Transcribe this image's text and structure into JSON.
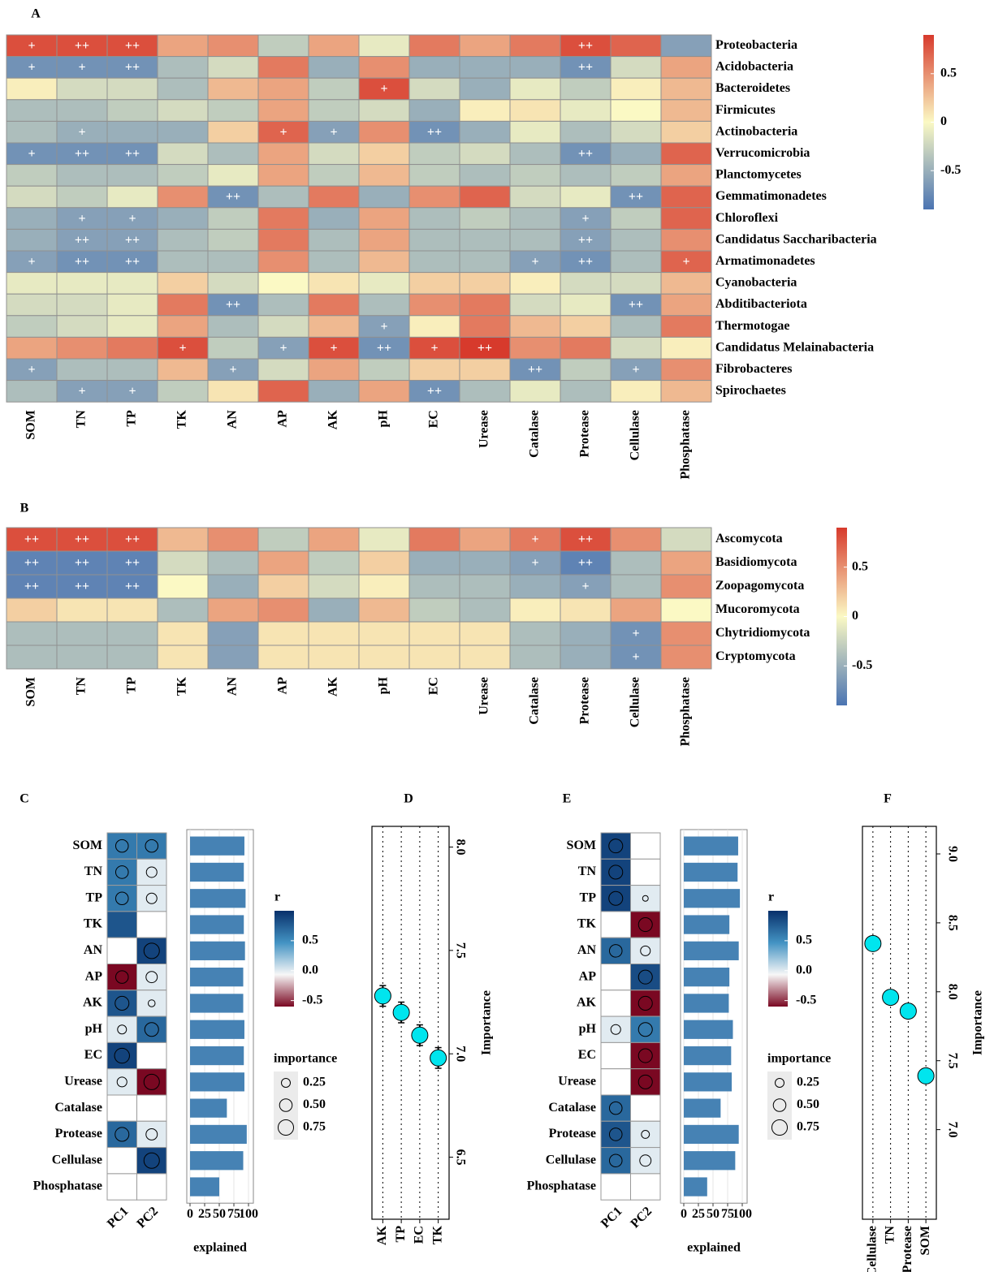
{
  "chart_data": [
    {
      "type": "heatmap",
      "label": "A",
      "rows": [
        "Proteobacteria",
        "Acidobacteria",
        "Bacteroidetes",
        "Firmicutes",
        "Actinobacteria",
        "Verrucomicrobia",
        "Planctomycetes",
        "Gemmatimonadetes",
        "Chloroflexi",
        "Candidatus Saccharibacteria",
        "Armatimonadetes",
        "Cyanobacteria",
        "Abditibacteriota",
        "Thermotogae",
        "Candidatus Melainabacteria",
        "Fibrobacteres",
        "Spirochaetes"
      ],
      "columns": [
        "SOM",
        "TN",
        "TP",
        "TK",
        "AN",
        "AP",
        "AK",
        "pH",
        "EC",
        "Urease",
        "Catalase",
        "Protease",
        "Cellulase",
        "Phosphatase"
      ],
      "values": [
        [
          0.8,
          0.8,
          0.8,
          0.4,
          0.5,
          -0.3,
          0.4,
          -0.1,
          0.6,
          0.4,
          0.6,
          0.8,
          0.7,
          -0.6
        ],
        [
          -0.7,
          -0.7,
          -0.7,
          -0.4,
          -0.2,
          0.6,
          -0.5,
          0.5,
          -0.5,
          -0.5,
          -0.5,
          -0.7,
          -0.2,
          0.4
        ],
        [
          0.05,
          -0.2,
          -0.2,
          -0.4,
          0.3,
          0.4,
          -0.3,
          0.8,
          -0.2,
          -0.5,
          -0.1,
          -0.3,
          0.05,
          0.3
        ],
        [
          -0.4,
          -0.4,
          -0.3,
          -0.2,
          -0.3,
          0.4,
          -0.3,
          -0.2,
          -0.5,
          0.05,
          0.1,
          -0.1,
          0.0,
          0.3
        ],
        [
          -0.4,
          -0.5,
          -0.5,
          -0.5,
          0.2,
          0.7,
          -0.6,
          0.5,
          -0.7,
          -0.5,
          -0.1,
          -0.4,
          -0.2,
          0.2
        ],
        [
          -0.7,
          -0.7,
          -0.7,
          -0.2,
          -0.4,
          0.4,
          -0.2,
          0.2,
          -0.3,
          -0.2,
          -0.4,
          -0.7,
          -0.5,
          0.7
        ],
        [
          -0.3,
          -0.4,
          -0.4,
          -0.3,
          -0.1,
          0.4,
          -0.3,
          0.3,
          -0.3,
          -0.4,
          -0.3,
          -0.4,
          -0.3,
          0.4
        ],
        [
          -0.2,
          -0.3,
          -0.1,
          0.5,
          -0.7,
          -0.4,
          0.6,
          -0.5,
          0.5,
          0.7,
          -0.2,
          -0.1,
          -0.7,
          0.7
        ],
        [
          -0.5,
          -0.6,
          -0.6,
          -0.5,
          -0.3,
          0.6,
          -0.5,
          0.4,
          -0.4,
          -0.3,
          -0.4,
          -0.6,
          -0.3,
          0.7
        ],
        [
          -0.5,
          -0.6,
          -0.6,
          -0.4,
          -0.3,
          0.6,
          -0.4,
          0.4,
          -0.4,
          -0.4,
          -0.4,
          -0.6,
          -0.4,
          0.5
        ],
        [
          -0.6,
          -0.7,
          -0.7,
          -0.4,
          -0.4,
          0.5,
          -0.4,
          0.3,
          -0.4,
          -0.4,
          -0.6,
          -0.7,
          -0.4,
          0.7
        ],
        [
          -0.1,
          -0.1,
          -0.1,
          0.2,
          -0.2,
          0.0,
          0.1,
          -0.1,
          0.2,
          0.2,
          0.05,
          -0.2,
          -0.2,
          0.3
        ],
        [
          -0.2,
          -0.2,
          -0.1,
          0.6,
          -0.7,
          -0.4,
          0.6,
          -0.4,
          0.5,
          0.6,
          -0.2,
          -0.1,
          -0.7,
          0.4
        ],
        [
          -0.3,
          -0.2,
          -0.1,
          0.4,
          -0.4,
          -0.2,
          0.3,
          -0.6,
          0.05,
          0.6,
          0.3,
          0.2,
          -0.4,
          0.6
        ],
        [
          0.4,
          0.5,
          0.6,
          0.8,
          -0.3,
          -0.6,
          0.8,
          -0.7,
          0.8,
          0.9,
          0.5,
          0.6,
          -0.2,
          0.05
        ],
        [
          -0.6,
          -0.4,
          -0.4,
          0.3,
          -0.6,
          -0.2,
          0.4,
          -0.3,
          0.2,
          0.2,
          -0.7,
          -0.3,
          -0.6,
          0.5
        ],
        [
          -0.4,
          -0.6,
          -0.6,
          -0.3,
          0.1,
          0.7,
          -0.5,
          0.4,
          -0.7,
          -0.4,
          -0.1,
          -0.4,
          0.05,
          0.3
        ]
      ],
      "cell_labels": [
        [
          "+",
          "++",
          "++",
          null,
          null,
          null,
          null,
          null,
          null,
          null,
          null,
          "++",
          null,
          null
        ],
        [
          "+",
          "+",
          "++",
          null,
          null,
          null,
          null,
          null,
          null,
          null,
          null,
          "++",
          null,
          null
        ],
        [
          null,
          null,
          null,
          null,
          null,
          null,
          null,
          "+",
          null,
          null,
          null,
          null,
          null,
          null
        ],
        [
          null,
          null,
          null,
          null,
          null,
          null,
          null,
          null,
          null,
          null,
          null,
          null,
          null,
          null
        ],
        [
          null,
          "+",
          null,
          null,
          null,
          "+",
          "+",
          null,
          "++",
          null,
          null,
          null,
          null,
          null
        ],
        [
          "+",
          "++",
          "++",
          null,
          null,
          null,
          null,
          null,
          null,
          null,
          null,
          "++",
          null,
          null
        ],
        [
          null,
          null,
          null,
          null,
          null,
          null,
          null,
          null,
          null,
          null,
          null,
          null,
          null,
          null
        ],
        [
          null,
          null,
          null,
          null,
          "++",
          null,
          null,
          null,
          null,
          null,
          null,
          null,
          "++",
          null
        ],
        [
          null,
          "+",
          "+",
          null,
          null,
          null,
          null,
          null,
          null,
          null,
          null,
          "+",
          null,
          null
        ],
        [
          null,
          "++",
          "++",
          null,
          null,
          null,
          null,
          null,
          null,
          null,
          null,
          "++",
          null,
          null
        ],
        [
          "+",
          "++",
          "++",
          null,
          null,
          null,
          null,
          null,
          null,
          null,
          "+",
          "++",
          null,
          "+"
        ],
        [
          null,
          null,
          null,
          null,
          null,
          null,
          null,
          null,
          null,
          null,
          null,
          null,
          null,
          null
        ],
        [
          null,
          null,
          null,
          null,
          "++",
          null,
          null,
          null,
          null,
          null,
          null,
          null,
          "++",
          null
        ],
        [
          null,
          null,
          null,
          null,
          null,
          null,
          null,
          "+",
          null,
          null,
          null,
          null,
          null,
          null
        ],
        [
          null,
          null,
          null,
          "+",
          null,
          "+",
          "+",
          "++",
          "+",
          "++",
          null,
          null,
          null,
          null
        ],
        [
          "+",
          null,
          null,
          null,
          "+",
          null,
          null,
          null,
          null,
          null,
          "++",
          null,
          "+",
          null
        ],
        [
          null,
          "+",
          "+",
          null,
          null,
          null,
          null,
          null,
          "++",
          null,
          null,
          null,
          null,
          null
        ]
      ],
      "clim": [
        -0.9,
        0.9
      ],
      "colorbar_ticks": [
        0.5,
        0,
        -0.5
      ],
      "colors": [
        "#4b74b2",
        "#fbf9c4",
        "#d73a2c"
      ]
    },
    {
      "type": "heatmap",
      "label": "B",
      "rows": [
        "Ascomycota",
        "Basidiomycota",
        "Zoopagomycota",
        "Mucoromycota",
        "Chytridiomycota",
        "Cryptomycota"
      ],
      "columns": [
        "SOM",
        "TN",
        "TP",
        "TK",
        "AN",
        "AP",
        "AK",
        "pH",
        "EC",
        "Urease",
        "Catalase",
        "Protease",
        "Cellulase",
        "Phosphatase"
      ],
      "values": [
        [
          0.8,
          0.8,
          0.8,
          0.3,
          0.5,
          -0.3,
          0.4,
          -0.1,
          0.6,
          0.4,
          0.6,
          0.8,
          0.5,
          -0.2
        ],
        [
          -0.8,
          -0.8,
          -0.8,
          -0.2,
          -0.4,
          0.4,
          -0.3,
          0.2,
          -0.5,
          -0.5,
          -0.6,
          -0.8,
          -0.4,
          0.4
        ],
        [
          -0.8,
          -0.8,
          -0.8,
          0.0,
          -0.5,
          0.2,
          -0.2,
          0.05,
          -0.4,
          -0.4,
          -0.5,
          -0.6,
          -0.4,
          0.5
        ],
        [
          0.2,
          0.1,
          0.1,
          -0.4,
          0.4,
          0.5,
          -0.5,
          0.3,
          -0.3,
          -0.4,
          0.05,
          0.1,
          0.4,
          0.0
        ],
        [
          -0.4,
          -0.4,
          -0.4,
          0.1,
          -0.6,
          0.1,
          0.1,
          0.1,
          0.1,
          0.1,
          -0.4,
          -0.5,
          -0.7,
          0.5
        ],
        [
          -0.4,
          -0.4,
          -0.4,
          0.1,
          -0.6,
          0.1,
          0.1,
          0.1,
          0.1,
          0.1,
          -0.4,
          -0.5,
          -0.7,
          0.5
        ]
      ],
      "cell_labels": [
        [
          "++",
          "++",
          "++",
          null,
          null,
          null,
          null,
          null,
          null,
          null,
          "+",
          "++",
          null,
          null
        ],
        [
          "++",
          "++",
          "++",
          null,
          null,
          null,
          null,
          null,
          null,
          null,
          "+",
          "++",
          null,
          null
        ],
        [
          "++",
          "++",
          "++",
          null,
          null,
          null,
          null,
          null,
          null,
          null,
          null,
          "+",
          null,
          null
        ],
        [
          null,
          null,
          null,
          null,
          null,
          null,
          null,
          null,
          null,
          null,
          null,
          null,
          null,
          null
        ],
        [
          null,
          null,
          null,
          null,
          null,
          null,
          null,
          null,
          null,
          null,
          null,
          null,
          "+",
          null
        ],
        [
          null,
          null,
          null,
          null,
          null,
          null,
          null,
          null,
          null,
          null,
          null,
          null,
          "+",
          null
        ]
      ],
      "clim": [
        -0.9,
        0.9
      ],
      "colorbar_ticks": [
        0.5,
        0,
        -0.5
      ],
      "colors": [
        "#4b74b2",
        "#fbf9c4",
        "#d73a2c"
      ]
    },
    {
      "type": "pca_heatmap",
      "label": "C",
      "rows": [
        "SOM",
        "TN",
        "TP",
        "TK",
        "AN",
        "AP",
        "AK",
        "pH",
        "EC",
        "Urease",
        "Catalase",
        "Protease",
        "Cellulase",
        "Phosphatase"
      ],
      "series": [
        {
          "name": "PC1",
          "values": [
            0.6,
            0.6,
            0.6,
            0.8,
            null,
            -0.6,
            0.8,
            0.0,
            0.9,
            0.0,
            null,
            0.7,
            null,
            null
          ],
          "importance": [
            0.5,
            0.5,
            0.5,
            null,
            null,
            0.5,
            0.6,
            0.25,
            0.7,
            0.3,
            null,
            0.6,
            null,
            null
          ]
        },
        {
          "name": "PC2",
          "values": [
            0.6,
            0.0,
            0.0,
            null,
            0.9,
            0.0,
            0.0,
            0.7,
            null,
            -0.6,
            null,
            0.0,
            0.9,
            null
          ],
          "importance": [
            0.5,
            0.35,
            0.35,
            null,
            0.75,
            0.4,
            0.15,
            0.6,
            null,
            0.75,
            null,
            0.4,
            0.75,
            null
          ]
        }
      ],
      "clim": [
        -0.6,
        1.0
      ],
      "colors": [
        "#7a0822",
        "#f7f7f7",
        "#4393c3",
        "#08306b"
      ],
      "colorbar_title": "r",
      "colorbar_ticks": [
        0.5,
        {
          "value": 0,
          "label": "0.0"
        },
        -0.5
      ],
      "size_title": "importance",
      "size_ticks": [
        0.25,
        {
          "value": 0.5,
          "label": "0.50"
        },
        0.75
      ],
      "explained": {
        "title": "explained",
        "color": "#4682b4",
        "values": [
          93,
          92,
          95,
          92,
          94,
          91,
          91,
          93,
          92,
          93,
          63,
          97,
          91,
          50
        ],
        "xlim": [
          0,
          100
        ],
        "xticks": [
          0,
          25,
          50,
          75,
          100
        ],
        "grid": true
      }
    },
    {
      "type": "dot",
      "label": "D",
      "categories": [
        "AK",
        "TP",
        "EC",
        "TK"
      ],
      "values": [
        7.28,
        7.2,
        7.09,
        6.98
      ],
      "errors": [
        0.05,
        0.05,
        0.05,
        0.05
      ],
      "ylim": [
        6.2,
        8.1
      ],
      "yticks": [
        6.5,
        {
          "value": 7,
          "label": "7.0"
        },
        7.5,
        {
          "value": 8,
          "label": "8.0"
        }
      ],
      "ylabel": "Importance",
      "color": "#00e5ee"
    },
    {
      "type": "pca_heatmap",
      "label": "E",
      "rows": [
        "SOM",
        "TN",
        "TP",
        "TK",
        "AN",
        "AP",
        "AK",
        "pH",
        "EC",
        "Urease",
        "Catalase",
        "Protease",
        "Cellulase",
        "Phosphatase"
      ],
      "series": [
        {
          "name": "PC1",
          "values": [
            0.9,
            0.9,
            0.9,
            null,
            0.7,
            null,
            null,
            0.0,
            null,
            null,
            0.7,
            0.8,
            0.7,
            null
          ],
          "importance": [
            0.6,
            0.6,
            0.6,
            null,
            0.5,
            null,
            null,
            0.3,
            null,
            null,
            0.5,
            0.5,
            0.5,
            null
          ]
        },
        {
          "name": "PC2",
          "values": [
            null,
            null,
            0.0,
            -0.6,
            0.0,
            0.85,
            -0.6,
            0.6,
            -0.6,
            -0.6,
            null,
            0.0,
            0.0,
            null
          ],
          "importance": [
            null,
            null,
            0.1,
            0.6,
            0.3,
            0.6,
            0.6,
            0.6,
            0.6,
            0.6,
            null,
            0.2,
            0.4,
            null
          ]
        }
      ],
      "clim": [
        -0.6,
        1.0
      ],
      "colors": [
        "#7a0822",
        "#f7f7f7",
        "#4393c3",
        "#08306b"
      ],
      "colorbar_title": "r",
      "colorbar_ticks": [
        0.5,
        {
          "value": 0,
          "label": "0.0"
        },
        -0.5
      ],
      "size_title": "importance",
      "size_ticks": [
        0.25,
        {
          "value": 0.5,
          "label": "0.50"
        },
        0.75
      ],
      "explained": {
        "title": "explained",
        "color": "#4682b4",
        "values": [
          93,
          92,
          96,
          78,
          94,
          78,
          77,
          84,
          81,
          82,
          63,
          94,
          88,
          40
        ],
        "xlim": [
          0,
          100
        ],
        "xticks": [
          0,
          25,
          50,
          75,
          100
        ],
        "grid": true
      }
    },
    {
      "type": "dot",
      "label": "F",
      "categories": [
        "Cellulase",
        "TN",
        "Protease",
        "SOM"
      ],
      "values": [
        8.35,
        7.96,
        7.86,
        7.39
      ],
      "errors": [
        0.03,
        0.03,
        0.03,
        0.03
      ],
      "ylim": [
        6.35,
        9.2
      ],
      "yticks": [
        {
          "value": 7,
          "label": "7.0"
        },
        7.5,
        {
          "value": 8,
          "label": "8.0"
        },
        8.5,
        {
          "value": 9,
          "label": "9.0"
        }
      ],
      "ylabel": "Importance",
      "color": "#00e5ee"
    }
  ]
}
